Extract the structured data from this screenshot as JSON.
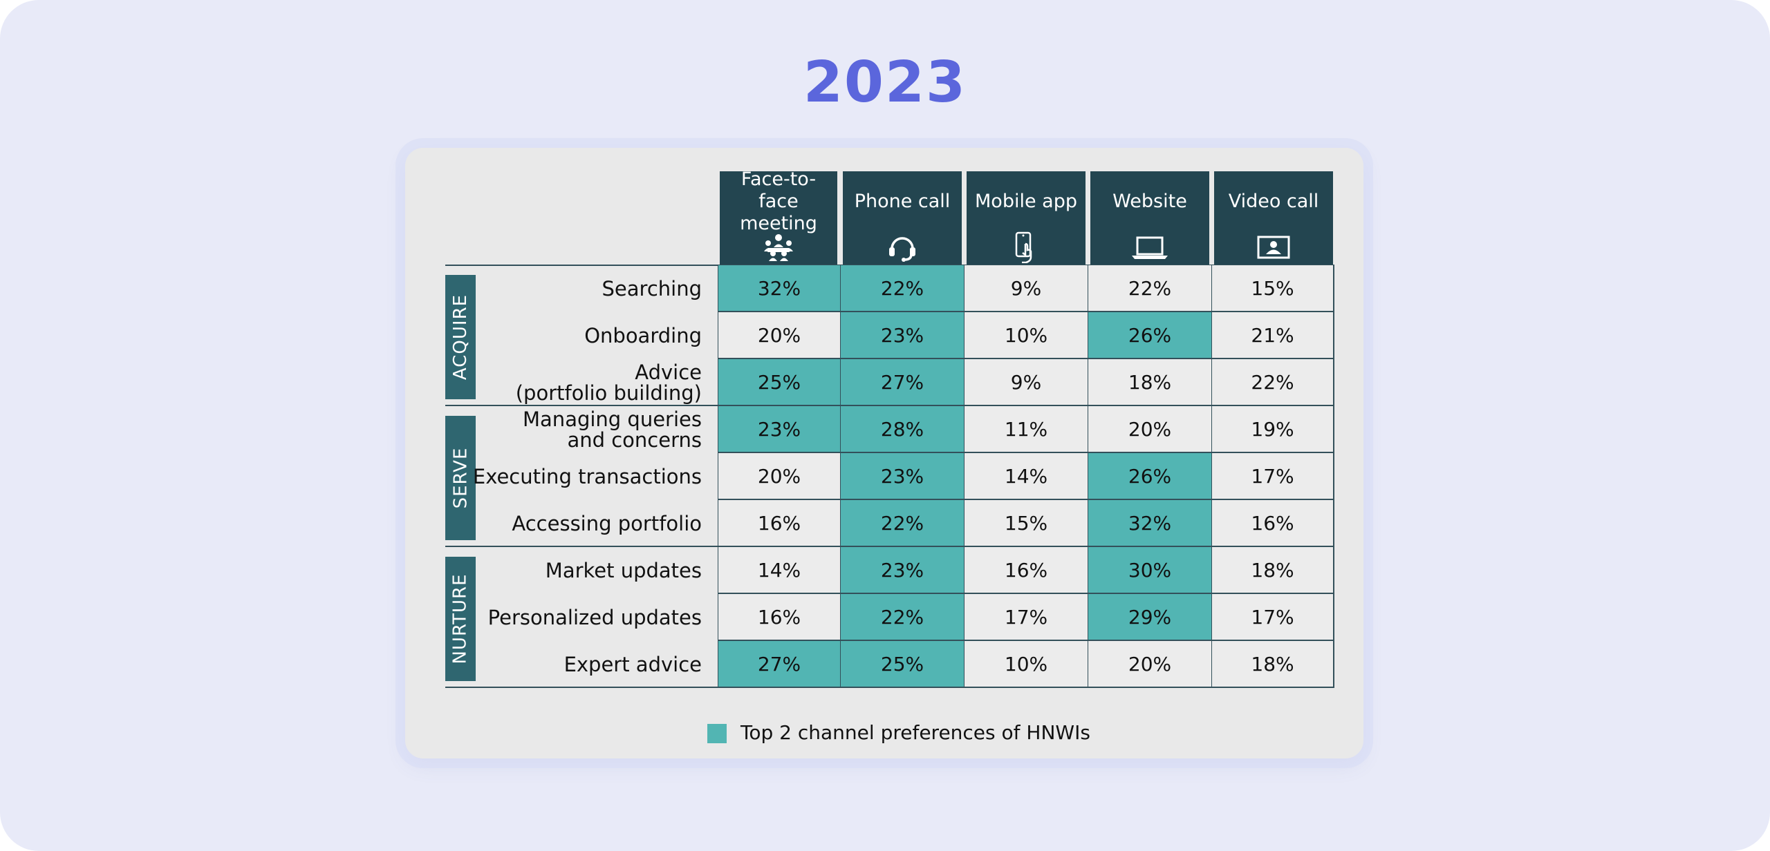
{
  "title": "2023",
  "colors": {
    "highlight": "#52b5b3",
    "header": "#234550",
    "group": "#2f6670",
    "cell": "#ececec",
    "title": "#5b66dc"
  },
  "legend": {
    "label": "Top 2 channel preferences of HNWIs"
  },
  "chart_data": {
    "type": "table",
    "columns": [
      {
        "label": "Face-to-face meeting",
        "icon": "meeting-icon"
      },
      {
        "label": "Phone call",
        "icon": "headset-icon"
      },
      {
        "label": "Mobile app",
        "icon": "mobile-app-icon"
      },
      {
        "label": "Website",
        "icon": "laptop-icon"
      },
      {
        "label": "Video call",
        "icon": "video-call-icon"
      }
    ],
    "groups": [
      {
        "name": "ACQUIRE",
        "rows": [
          {
            "label": "Searching",
            "values": [
              "32%",
              "22%",
              "9%",
              "22%",
              "15%"
            ],
            "highlight": [
              true,
              true,
              false,
              false,
              false
            ]
          },
          {
            "label": "Onboarding",
            "values": [
              "20%",
              "23%",
              "10%",
              "26%",
              "21%"
            ],
            "highlight": [
              false,
              true,
              false,
              true,
              false
            ]
          },
          {
            "label": "Advice\n(portfolio building)",
            "values": [
              "25%",
              "27%",
              "9%",
              "18%",
              "22%"
            ],
            "highlight": [
              true,
              true,
              false,
              false,
              false
            ]
          }
        ]
      },
      {
        "name": "SERVE",
        "rows": [
          {
            "label": "Managing queries\nand concerns",
            "values": [
              "23%",
              "28%",
              "11%",
              "20%",
              "19%"
            ],
            "highlight": [
              true,
              true,
              false,
              false,
              false
            ]
          },
          {
            "label": "Executing transactions",
            "values": [
              "20%",
              "23%",
              "14%",
              "26%",
              "17%"
            ],
            "highlight": [
              false,
              true,
              false,
              true,
              false
            ]
          },
          {
            "label": "Accessing portfolio",
            "values": [
              "16%",
              "22%",
              "15%",
              "32%",
              "16%"
            ],
            "highlight": [
              false,
              true,
              false,
              true,
              false
            ]
          }
        ]
      },
      {
        "name": "NURTURE",
        "rows": [
          {
            "label": "Market updates",
            "values": [
              "14%",
              "23%",
              "16%",
              "30%",
              "18%"
            ],
            "highlight": [
              false,
              true,
              false,
              true,
              false
            ]
          },
          {
            "label": "Personalized updates",
            "values": [
              "16%",
              "22%",
              "17%",
              "29%",
              "17%"
            ],
            "highlight": [
              false,
              true,
              false,
              true,
              false
            ]
          },
          {
            "label": "Expert advice",
            "values": [
              "27%",
              "25%",
              "10%",
              "20%",
              "18%"
            ],
            "highlight": [
              true,
              true,
              false,
              false,
              false
            ]
          }
        ]
      }
    ]
  }
}
